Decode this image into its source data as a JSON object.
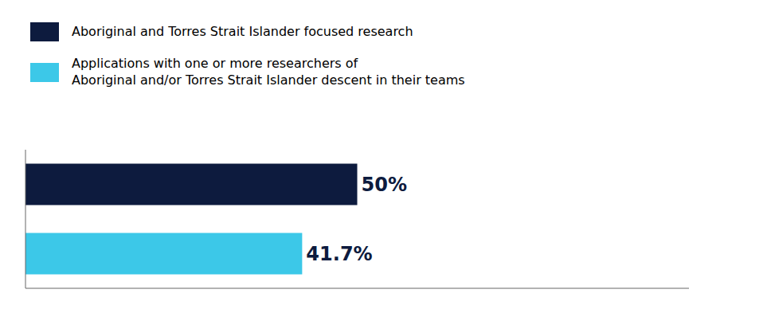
{
  "chart_data": {
    "type": "bar",
    "orientation": "horizontal",
    "categories": [
      "Aboriginal and Torres Strait Islander focused research",
      "Applications with one or more researchers of\nAboriginal and/or Torres Strait Islander descent in their teams"
    ],
    "values": [
      50.0,
      41.7
    ],
    "value_labels": [
      "50%",
      "41.7%"
    ],
    "colors": [
      "#0d1b3e",
      "#3cc8e8"
    ],
    "xlim": [
      0,
      100
    ],
    "xticks": [
      0,
      25,
      50,
      75,
      100
    ],
    "data_labels": true,
    "tick_labels": false,
    "legend": "upper left",
    "grid": false
  }
}
